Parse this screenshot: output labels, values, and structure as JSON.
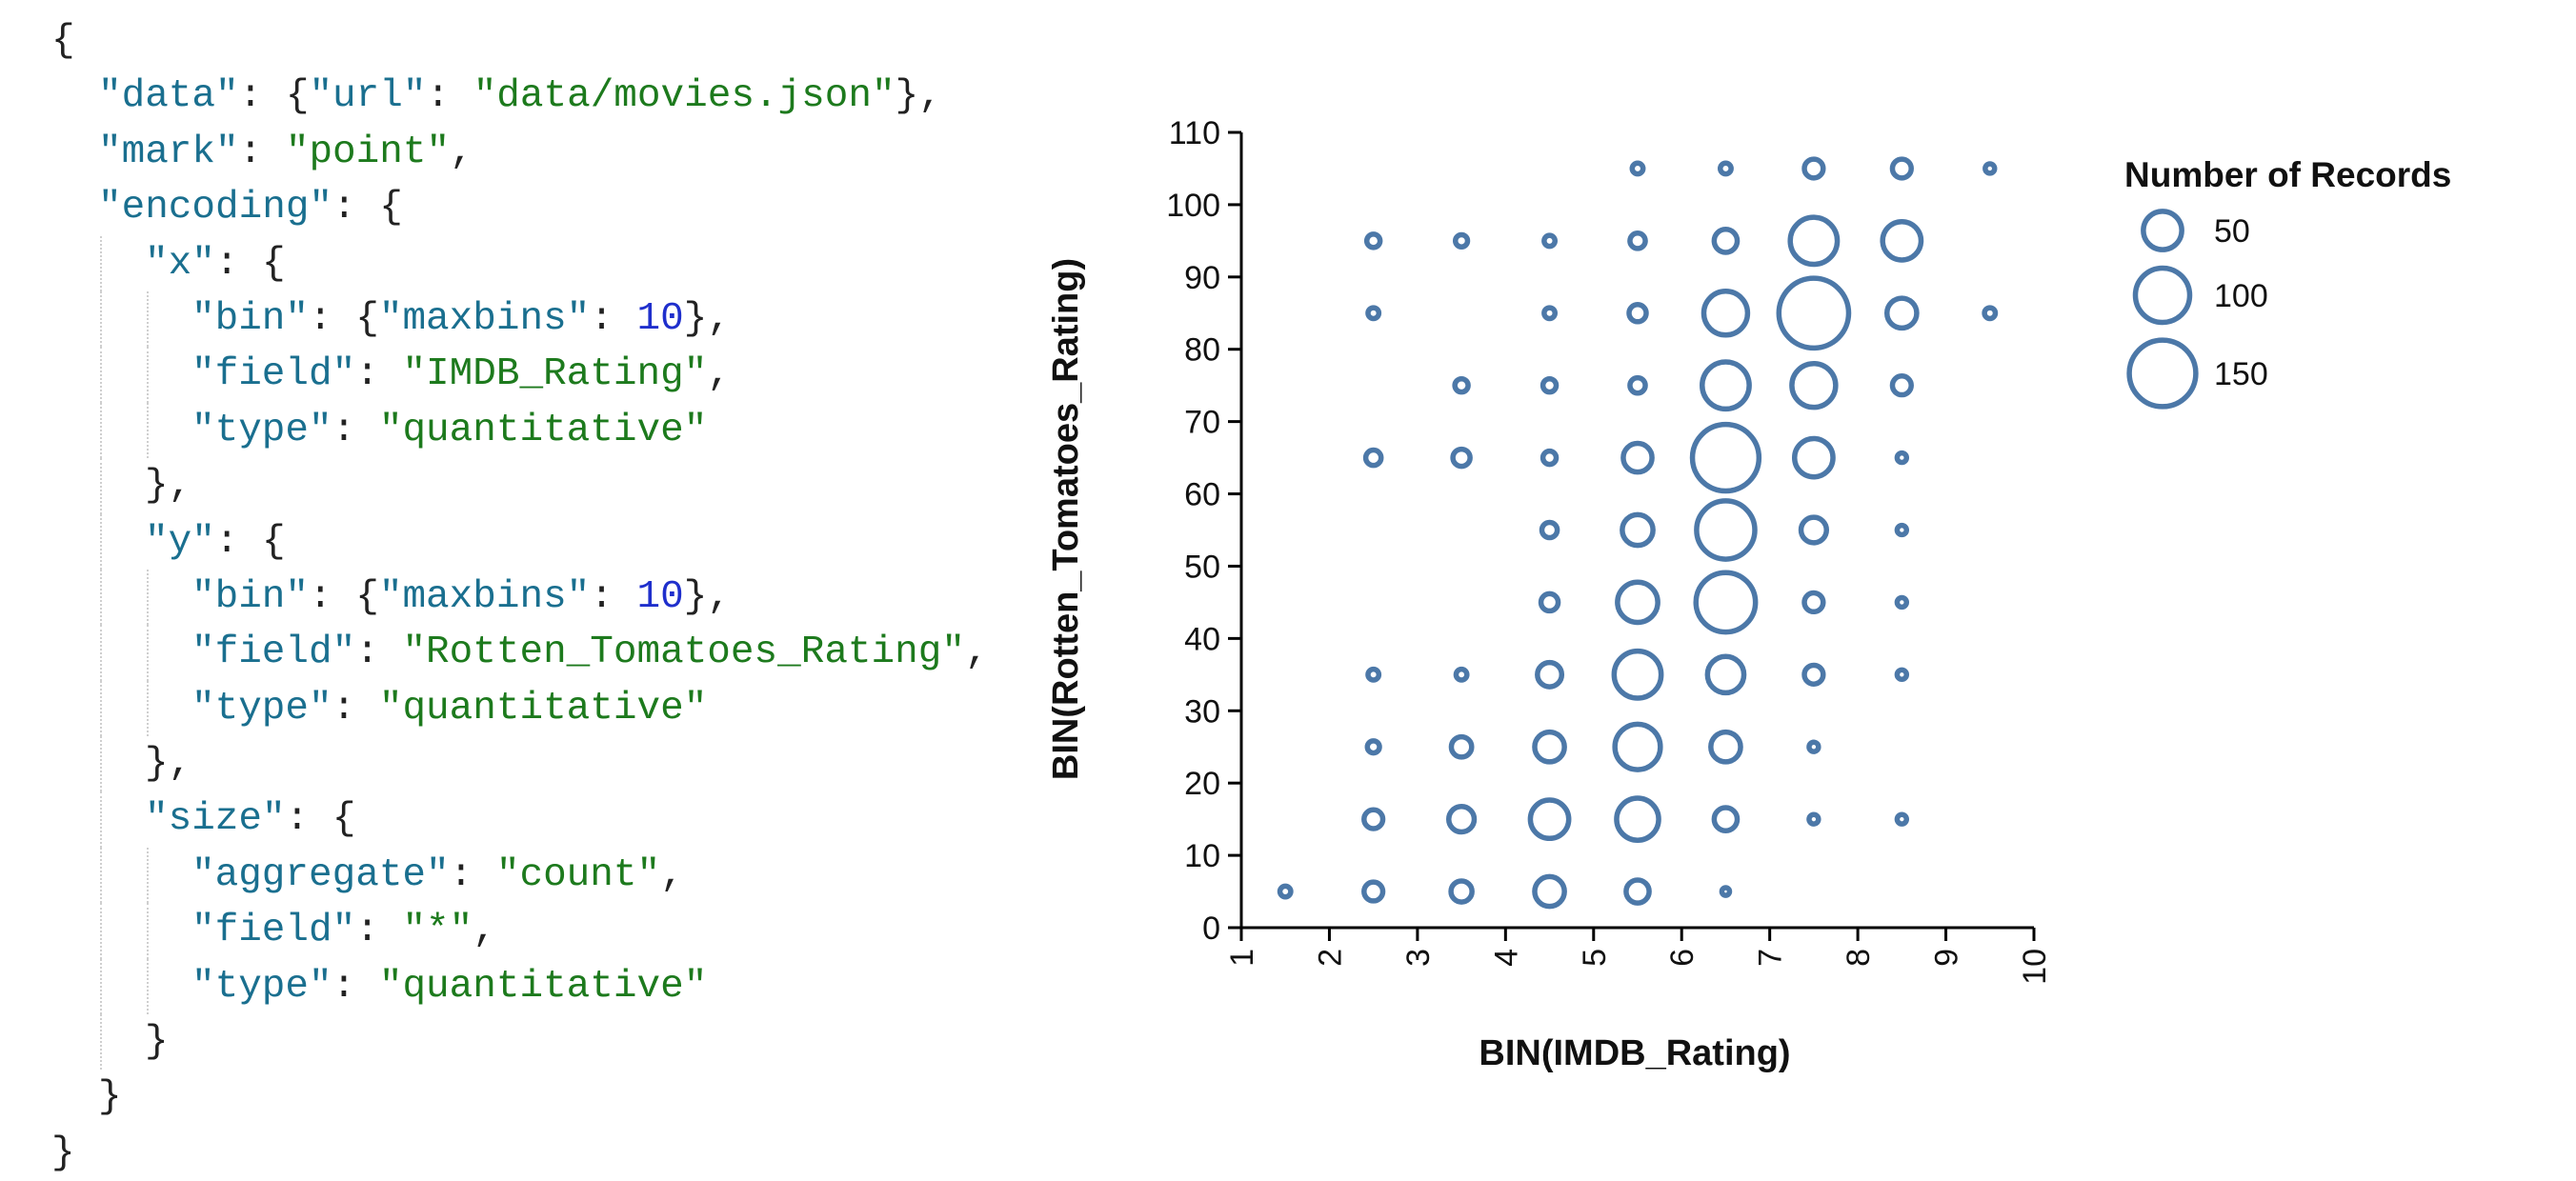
{
  "code": {
    "lines": [
      {
        "indent": 0,
        "tokens": [
          {
            "t": "p",
            "v": "{"
          }
        ]
      },
      {
        "indent": 1,
        "tokens": [
          {
            "t": "k",
            "v": "\"data\""
          },
          {
            "t": "p",
            "v": ": {"
          },
          {
            "t": "k",
            "v": "\"url\""
          },
          {
            "t": "p",
            "v": ": "
          },
          {
            "t": "s",
            "v": "\"data/movies.json\""
          },
          {
            "t": "p",
            "v": "},"
          }
        ]
      },
      {
        "indent": 1,
        "tokens": [
          {
            "t": "k",
            "v": "\"mark\""
          },
          {
            "t": "p",
            "v": ": "
          },
          {
            "t": "s",
            "v": "\"point\""
          },
          {
            "t": "p",
            "v": ","
          }
        ]
      },
      {
        "indent": 1,
        "tokens": [
          {
            "t": "k",
            "v": "\"encoding\""
          },
          {
            "t": "p",
            "v": ": {"
          }
        ]
      },
      {
        "indent": 2,
        "tokens": [
          {
            "t": "k",
            "v": "\"x\""
          },
          {
            "t": "p",
            "v": ": {"
          }
        ]
      },
      {
        "indent": 3,
        "tokens": [
          {
            "t": "k",
            "v": "\"bin\""
          },
          {
            "t": "p",
            "v": ": {"
          },
          {
            "t": "k",
            "v": "\"maxbins\""
          },
          {
            "t": "p",
            "v": ": "
          },
          {
            "t": "n",
            "v": "10"
          },
          {
            "t": "p",
            "v": "},"
          }
        ]
      },
      {
        "indent": 3,
        "tokens": [
          {
            "t": "k",
            "v": "\"field\""
          },
          {
            "t": "p",
            "v": ": "
          },
          {
            "t": "s",
            "v": "\"IMDB_Rating\""
          },
          {
            "t": "p",
            "v": ","
          }
        ]
      },
      {
        "indent": 3,
        "tokens": [
          {
            "t": "k",
            "v": "\"type\""
          },
          {
            "t": "p",
            "v": ": "
          },
          {
            "t": "s",
            "v": "\"quantitative\""
          }
        ]
      },
      {
        "indent": 2,
        "tokens": [
          {
            "t": "p",
            "v": "},"
          }
        ]
      },
      {
        "indent": 2,
        "tokens": [
          {
            "t": "k",
            "v": "\"y\""
          },
          {
            "t": "p",
            "v": ": {"
          }
        ]
      },
      {
        "indent": 3,
        "tokens": [
          {
            "t": "k",
            "v": "\"bin\""
          },
          {
            "t": "p",
            "v": ": {"
          },
          {
            "t": "k",
            "v": "\"maxbins\""
          },
          {
            "t": "p",
            "v": ": "
          },
          {
            "t": "n",
            "v": "10"
          },
          {
            "t": "p",
            "v": "},"
          }
        ]
      },
      {
        "indent": 3,
        "tokens": [
          {
            "t": "k",
            "v": "\"field\""
          },
          {
            "t": "p",
            "v": ": "
          },
          {
            "t": "s",
            "v": "\"Rotten_Tomatoes_Rating\""
          },
          {
            "t": "p",
            "v": ","
          }
        ]
      },
      {
        "indent": 3,
        "tokens": [
          {
            "t": "k",
            "v": "\"type\""
          },
          {
            "t": "p",
            "v": ": "
          },
          {
            "t": "s",
            "v": "\"quantitative\""
          }
        ]
      },
      {
        "indent": 2,
        "tokens": [
          {
            "t": "p",
            "v": "},"
          }
        ]
      },
      {
        "indent": 2,
        "tokens": [
          {
            "t": "k",
            "v": "\"size\""
          },
          {
            "t": "p",
            "v": ": {"
          }
        ]
      },
      {
        "indent": 3,
        "tokens": [
          {
            "t": "k",
            "v": "\"aggregate\""
          },
          {
            "t": "p",
            "v": ": "
          },
          {
            "t": "s",
            "v": "\"count\""
          },
          {
            "t": "p",
            "v": ","
          }
        ]
      },
      {
        "indent": 3,
        "tokens": [
          {
            "t": "k",
            "v": "\"field\""
          },
          {
            "t": "p",
            "v": ": "
          },
          {
            "t": "s",
            "v": "\"*\""
          },
          {
            "t": "p",
            "v": ","
          }
        ]
      },
      {
        "indent": 3,
        "tokens": [
          {
            "t": "k",
            "v": "\"type\""
          },
          {
            "t": "p",
            "v": ": "
          },
          {
            "t": "s",
            "v": "\"quantitative\""
          }
        ]
      },
      {
        "indent": 2,
        "tokens": [
          {
            "t": "p",
            "v": "}"
          }
        ]
      },
      {
        "indent": 1,
        "tokens": [
          {
            "t": "p",
            "v": "}"
          }
        ]
      },
      {
        "indent": 0,
        "tokens": [
          {
            "t": "p",
            "v": "}"
          }
        ]
      }
    ]
  },
  "chart_data": {
    "type": "scatter",
    "title": "",
    "xlabel": "BIN(IMDB_Rating)",
    "ylabel": "BIN(Rotten_Tomatoes_Rating)",
    "xlim": [
      1,
      10
    ],
    "ylim": [
      0,
      110
    ],
    "xticks": [
      1,
      2,
      3,
      4,
      5,
      6,
      7,
      8,
      9,
      10
    ],
    "yticks": [
      0,
      10,
      20,
      30,
      40,
      50,
      60,
      70,
      80,
      90,
      100,
      110
    ],
    "grid": false,
    "mark_color": "#4c78a8",
    "legend": {
      "title": "Number of Records",
      "placement": "top-right",
      "entries": [
        {
          "label": "50",
          "value": 50
        },
        {
          "label": "100",
          "value": 100
        },
        {
          "label": "150",
          "value": 150
        }
      ]
    },
    "series": [
      {
        "x": [
          1.5,
          2.5,
          3.5,
          4.5,
          5.5,
          6.5,
          2.5,
          3.5,
          4.5,
          5.5,
          6.5,
          7.5,
          8.5,
          2.5,
          3.5,
          4.5,
          5.5,
          6.5,
          7.5,
          2.5,
          3.5,
          4.5,
          5.5,
          6.5,
          7.5,
          8.5,
          4.5,
          5.5,
          6.5,
          7.5,
          8.5,
          4.5,
          5.5,
          6.5,
          7.5,
          8.5,
          2.5,
          3.5,
          4.5,
          5.5,
          6.5,
          7.5,
          8.5,
          3.5,
          4.5,
          5.5,
          6.5,
          7.5,
          8.5,
          2.5,
          4.5,
          5.5,
          6.5,
          7.5,
          8.5,
          9.5,
          2.5,
          3.5,
          4.5,
          5.5,
          6.5,
          7.5,
          8.5,
          5.5,
          6.5,
          7.5,
          8.5,
          9.5
        ],
        "y": [
          5,
          5,
          5,
          5,
          5,
          5,
          15,
          15,
          15,
          15,
          15,
          15,
          15,
          25,
          25,
          25,
          25,
          25,
          25,
          35,
          35,
          35,
          35,
          35,
          35,
          35,
          45,
          45,
          45,
          45,
          45,
          55,
          55,
          55,
          55,
          55,
          65,
          65,
          65,
          65,
          65,
          65,
          65,
          75,
          75,
          75,
          75,
          75,
          75,
          85,
          85,
          85,
          85,
          85,
          85,
          85,
          95,
          95,
          95,
          95,
          95,
          95,
          95,
          105,
          105,
          105,
          105,
          105
        ],
        "count": [
          4,
          12,
          15,
          30,
          18,
          2,
          12,
          22,
          50,
          60,
          18,
          3,
          3,
          5,
          14,
          30,
          70,
          30,
          3,
          4,
          4,
          20,
          75,
          45,
          12,
          3,
          10,
          55,
          120,
          12,
          3,
          8,
          32,
          115,
          22,
          3,
          8,
          10,
          6,
          28,
          150,
          50,
          3,
          6,
          6,
          8,
          75,
          65,
          12,
          4,
          4,
          10,
          65,
          165,
          30,
          4,
          6,
          5,
          4,
          8,
          18,
          75,
          50,
          4,
          4,
          12,
          12,
          3
        ]
      }
    ]
  }
}
